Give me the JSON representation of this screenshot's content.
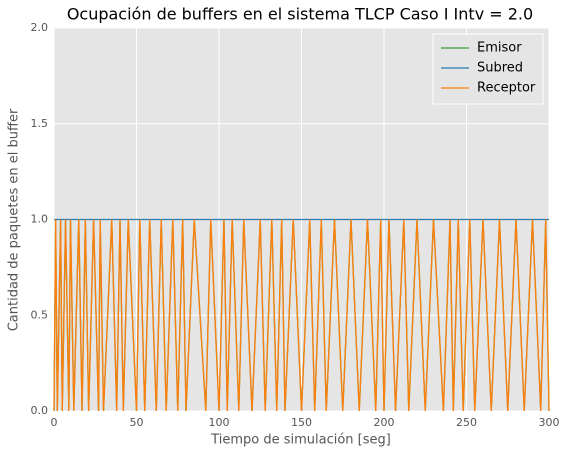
{
  "chart_data": {
    "type": "line",
    "title": "Ocupación de buffers en el sistema TLCP Caso I Intv = 2.0",
    "x_label": "Tiempo de simulación [seg]",
    "y_label": "Cantidad de paquetes en el buffer",
    "x": [
      0,
      1,
      2,
      4,
      5,
      7,
      9,
      10,
      12,
      15,
      17,
      19,
      21,
      24,
      27,
      28,
      30,
      35,
      38,
      40,
      42,
      45,
      50,
      52,
      55,
      58,
      62,
      65,
      68,
      72,
      75,
      78,
      80,
      85,
      92,
      95,
      100,
      103,
      105,
      108,
      112,
      115,
      120,
      125,
      128,
      132,
      135,
      138,
      140,
      145,
      150,
      155,
      158,
      162,
      165,
      170,
      175,
      180,
      185,
      190,
      195,
      198,
      200,
      203,
      207,
      212,
      215,
      220,
      225,
      230,
      236,
      240,
      242,
      245,
      248,
      252,
      255,
      260,
      265,
      270,
      275,
      280,
      285,
      290,
      295,
      298,
      300
    ],
    "series": [
      {
        "name": "Emisor",
        "color": "#3c9e3c",
        "values": [
          0,
          1,
          0,
          1,
          0,
          1,
          0,
          1,
          0,
          1,
          0,
          1,
          0,
          1,
          0,
          1,
          0,
          1,
          0,
          1,
          0,
          1,
          0,
          1,
          0,
          1,
          0,
          1,
          0,
          1,
          0,
          1,
          0,
          1,
          0,
          1,
          0,
          1,
          0,
          1,
          0,
          1,
          0,
          1,
          0,
          1,
          0,
          1,
          0,
          1,
          0,
          1,
          0,
          1,
          0,
          1,
          0,
          1,
          0,
          1,
          0,
          1,
          0,
          1,
          0,
          1,
          0,
          1,
          0,
          1,
          0,
          1,
          0,
          1,
          0,
          1,
          0,
          1,
          0,
          1,
          0,
          1,
          0,
          1,
          0,
          1,
          0
        ]
      },
      {
        "name": "Subred",
        "color": "#2a7ab0",
        "values": [
          1,
          1,
          1,
          1,
          1,
          1,
          1,
          1,
          1,
          1,
          1,
          1,
          1,
          1,
          1,
          1,
          1,
          1,
          1,
          1,
          1,
          1,
          1,
          1,
          1,
          1,
          1,
          1,
          1,
          1,
          1,
          1,
          1,
          1,
          1,
          1,
          1,
          1,
          1,
          1,
          1,
          1,
          1,
          1,
          1,
          1,
          1,
          1,
          1,
          1,
          1,
          1,
          1,
          1,
          1,
          1,
          1,
          1,
          1,
          1,
          1,
          1,
          1,
          1,
          1,
          1,
          1,
          1,
          1,
          1,
          1,
          1,
          1,
          1,
          1,
          1,
          1,
          1,
          1,
          1,
          1,
          1,
          1,
          1,
          1,
          1,
          1
        ]
      },
      {
        "name": "Receptor",
        "color": "#ff7f0e",
        "values": [
          0,
          1,
          0,
          1,
          0,
          1,
          0,
          1,
          0,
          1,
          0,
          1,
          0,
          1,
          0,
          1,
          0,
          1,
          0,
          1,
          0,
          1,
          0,
          1,
          0,
          1,
          0,
          1,
          0,
          1,
          0,
          1,
          0,
          1,
          0,
          1,
          0,
          1,
          0,
          1,
          0,
          1,
          0,
          1,
          0,
          1,
          0,
          1,
          0,
          1,
          0,
          1,
          0,
          1,
          0,
          1,
          0,
          1,
          0,
          1,
          0,
          1,
          0,
          1,
          0,
          1,
          0,
          1,
          0,
          1,
          0,
          1,
          0,
          1,
          0,
          1,
          0,
          1,
          0,
          1,
          0,
          1,
          0,
          1,
          0,
          1,
          0
        ]
      }
    ],
    "xlim": [
      0,
      300
    ],
    "xticks": [
      0,
      50,
      100,
      150,
      200,
      250,
      300
    ],
    "ylim": [
      0,
      2
    ],
    "yticks": [
      {
        "value": 0,
        "label": "0.0"
      },
      {
        "value": 0.5,
        "label": "0.5"
      },
      {
        "value": 1,
        "label": "1.0"
      },
      {
        "value": 1.5,
        "label": "1.5"
      },
      {
        "value": 2,
        "label": "2.0"
      }
    ],
    "grid": true,
    "legend": "upper right"
  }
}
